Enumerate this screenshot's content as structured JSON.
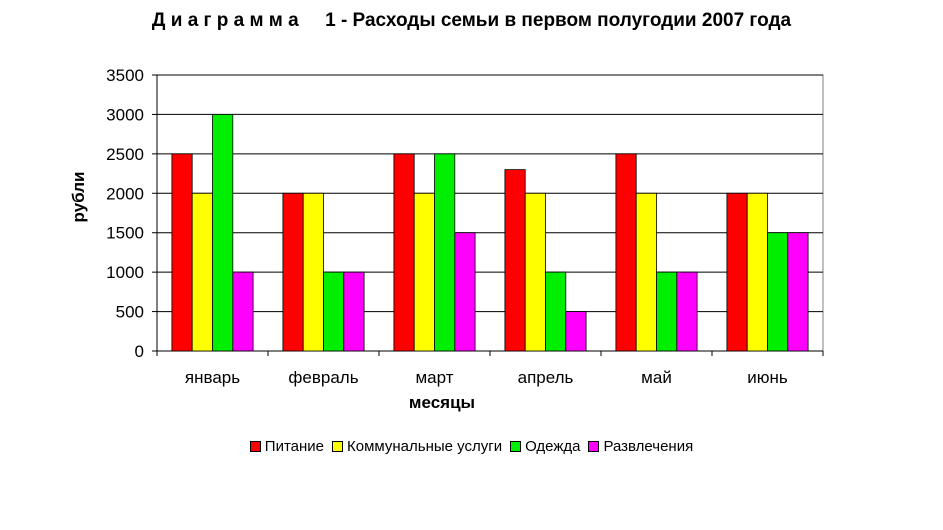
{
  "chart_data": {
    "type": "bar",
    "title": "Д и а г р а м м а     1 - Расходы семьи в первом полугодии 2007 года",
    "xlabel": "месяцы",
    "ylabel": "рубли",
    "ylim": [
      0,
      3500
    ],
    "yticks": [
      0,
      500,
      1000,
      1500,
      2000,
      2500,
      3000,
      3500
    ],
    "grid": true,
    "legend_position": "bottom",
    "categories": [
      "январь",
      "февраль",
      "март",
      "апрель",
      "май",
      "июнь"
    ],
    "series": [
      {
        "name": "Питание",
        "color": "#ff0000",
        "values": [
          2500,
          2000,
          2500,
          2300,
          2500,
          2000
        ]
      },
      {
        "name": "Коммунальные услуги",
        "color": "#ffff00",
        "values": [
          2000,
          2000,
          2000,
          2000,
          2000,
          2000
        ]
      },
      {
        "name": "Одежда",
        "color": "#00ee00",
        "values": [
          3000,
          1000,
          2500,
          1000,
          1000,
          1500
        ]
      },
      {
        "name": "Развлечения",
        "color": "#ff00ff",
        "values": [
          1000,
          1000,
          1500,
          500,
          1000,
          1500
        ]
      }
    ]
  }
}
